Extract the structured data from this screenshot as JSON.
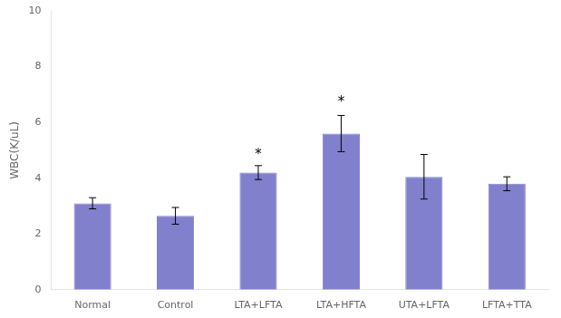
{
  "chart_data": {
    "type": "bar",
    "categories": [
      "Normal",
      "Control",
      "LTA+LFTA",
      "LTA+HFTA",
      "UTA+LFTA",
      "LFTA+TTA"
    ],
    "values": [
      3.1,
      2.65,
      4.2,
      5.6,
      4.05,
      3.8
    ],
    "errors": [
      0.2,
      0.3,
      0.25,
      0.65,
      0.8,
      0.25
    ],
    "color": "#8080cc",
    "ylabel": "WBC(K/uL)",
    "ylim": [
      0,
      10
    ],
    "yticks": [
      0,
      2,
      4,
      6,
      8,
      10
    ],
    "grid": false,
    "annotations": [
      {
        "text": "*",
        "x": "LTA+LFTA",
        "y": 4.73
      },
      {
        "text": "*",
        "x": "LTA+HFTA",
        "y": 6.6
      }
    ]
  }
}
